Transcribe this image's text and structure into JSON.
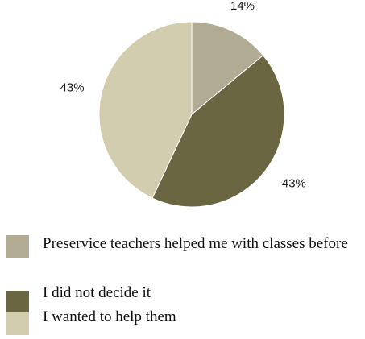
{
  "chart_data": {
    "type": "pie",
    "slices": [
      {
        "label": "Preservice teachers helped me with classes before",
        "value": 14,
        "display": "14%",
        "color": "#b1ab93"
      },
      {
        "label": "I did not decide it",
        "value": 43,
        "display": "43%",
        "color": "#6b6642"
      },
      {
        "label": "I wanted to help them",
        "value": 43,
        "display": "43%",
        "color": "#d3cdaf"
      }
    ],
    "legend_position": "bottom",
    "start_angle_deg": 0,
    "direction": "clockwise"
  }
}
